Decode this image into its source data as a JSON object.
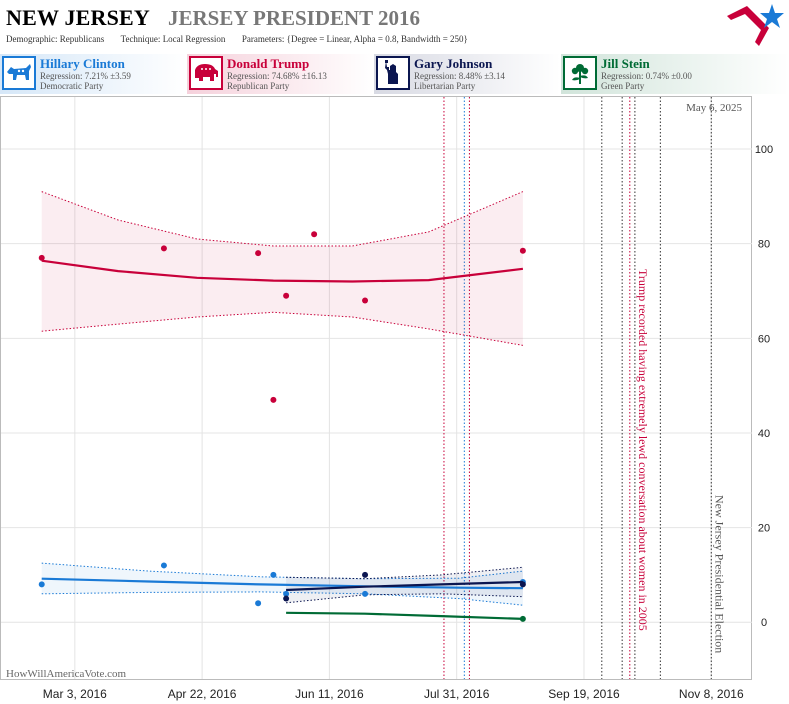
{
  "header": {
    "state": "NEW JERSEY",
    "race": "JERSEY PRESIDENT 2016",
    "demographic_label": "Demographic:",
    "demographic": "Republicans",
    "technique_label": "Technique:",
    "technique": "Local Regression",
    "parameters_label": "Parameters:",
    "parameters": "{Degree = Linear, Alpha = 0.8, Bandwidth = 250}"
  },
  "candidates": [
    {
      "name": "Hillary Clinton",
      "regression": "Regression: 7.21% ±3.59",
      "party": "Democratic Party",
      "color": "#1a7ad6",
      "icon": "donkey-icon"
    },
    {
      "name": "Donald Trump",
      "regression": "Regression: 74.68% ±16.13",
      "party": "Republican Party",
      "color": "#c8003a",
      "icon": "elephant-icon"
    },
    {
      "name": "Gary Johnson",
      "regression": "Regression: 8.48% ±3.14",
      "party": "Libertarian Party",
      "color": "#0b1650",
      "icon": "statue-of-liberty-icon"
    },
    {
      "name": "Jill Stein",
      "regression": "Regression: 0.74% ±0.00",
      "party": "Green Party",
      "color": "#006b35",
      "icon": "flower-icon"
    }
  ],
  "footer": {
    "watermark": "HowWillAmericaVote.com"
  },
  "chart_data": {
    "type": "scatter",
    "date_label": "May 6, 2025",
    "x_ticks": [
      "2016-03-03",
      "2016-04-22",
      "2016-06-11",
      "2016-07-31",
      "2016-09-19",
      "2016-11-08"
    ],
    "x_tick_labels": [
      "Mar 3, 2016",
      "Apr 22, 2016",
      "Jun 11, 2016",
      "Jul 31, 2016",
      "Sep 19, 2016",
      "Nov 8, 2016"
    ],
    "x_range": [
      "2016-02-03",
      "2016-11-24"
    ],
    "ylim": [
      -12,
      111
    ],
    "y_ticks": [
      0,
      20,
      40,
      60,
      80,
      100
    ],
    "grid": true,
    "series": [
      {
        "name": "Donald Trump",
        "color": "#c8003a",
        "points": [
          [
            "2016-02-19",
            77
          ],
          [
            "2016-04-07",
            79
          ],
          [
            "2016-05-14",
            78
          ],
          [
            "2016-05-20",
            47
          ],
          [
            "2016-05-25",
            69
          ],
          [
            "2016-06-05",
            82
          ],
          [
            "2016-06-25",
            68
          ],
          [
            "2016-08-26",
            78.5
          ]
        ],
        "trend": [
          [
            "2016-02-19",
            76.4
          ],
          [
            "2016-03-20",
            74.2
          ],
          [
            "2016-04-20",
            72.8
          ],
          [
            "2016-05-20",
            72.2
          ],
          [
            "2016-06-20",
            72.0
          ],
          [
            "2016-07-20",
            72.3
          ],
          [
            "2016-08-26",
            74.7
          ]
        ],
        "band_upper": [
          [
            "2016-02-19",
            91
          ],
          [
            "2016-03-20",
            85
          ],
          [
            "2016-04-20",
            81
          ],
          [
            "2016-05-20",
            79.5
          ],
          [
            "2016-06-20",
            79.5
          ],
          [
            "2016-07-20",
            82.5
          ],
          [
            "2016-08-26",
            91
          ]
        ],
        "band_lower": [
          [
            "2016-02-19",
            61.5
          ],
          [
            "2016-03-20",
            63
          ],
          [
            "2016-04-20",
            64.5
          ],
          [
            "2016-05-20",
            65.5
          ],
          [
            "2016-06-20",
            64.5
          ],
          [
            "2016-07-20",
            62
          ],
          [
            "2016-08-26",
            58.5
          ]
        ]
      },
      {
        "name": "Hillary Clinton",
        "color": "#1a7ad6",
        "points": [
          [
            "2016-02-19",
            8
          ],
          [
            "2016-04-07",
            12
          ],
          [
            "2016-05-14",
            4
          ],
          [
            "2016-05-20",
            10
          ],
          [
            "2016-05-25",
            6
          ],
          [
            "2016-06-25",
            6
          ],
          [
            "2016-08-26",
            8.5
          ]
        ],
        "trend": [
          [
            "2016-02-19",
            9.2
          ],
          [
            "2016-04-01",
            8.6
          ],
          [
            "2016-05-15",
            8.0
          ],
          [
            "2016-06-25",
            7.6
          ],
          [
            "2016-08-01",
            7.3
          ],
          [
            "2016-08-26",
            7.2
          ]
        ],
        "band_upper": [
          [
            "2016-02-19",
            12.5
          ],
          [
            "2016-04-01",
            10.8
          ],
          [
            "2016-05-15",
            9.6
          ],
          [
            "2016-06-25",
            9.2
          ],
          [
            "2016-08-01",
            9.3
          ],
          [
            "2016-08-26",
            10.8
          ]
        ],
        "band_lower": [
          [
            "2016-02-19",
            6
          ],
          [
            "2016-04-01",
            6.3
          ],
          [
            "2016-05-15",
            6.4
          ],
          [
            "2016-06-25",
            6
          ],
          [
            "2016-08-01",
            5
          ],
          [
            "2016-08-26",
            3.6
          ]
        ]
      },
      {
        "name": "Gary Johnson",
        "color": "#0b1650",
        "points": [
          [
            "2016-05-25",
            5
          ],
          [
            "2016-06-25",
            10
          ],
          [
            "2016-08-26",
            8
          ]
        ],
        "trend": [
          [
            "2016-05-25",
            6.8
          ],
          [
            "2016-06-25",
            7.5
          ],
          [
            "2016-07-25",
            8.0
          ],
          [
            "2016-08-26",
            8.5
          ]
        ],
        "band_upper": [
          [
            "2016-05-25",
            9.5
          ],
          [
            "2016-06-25",
            9.2
          ],
          [
            "2016-07-25",
            10
          ],
          [
            "2016-08-26",
            11.6
          ]
        ],
        "band_lower": [
          [
            "2016-05-25",
            4.1
          ],
          [
            "2016-06-25",
            5.8
          ],
          [
            "2016-07-25",
            6
          ],
          [
            "2016-08-26",
            5.4
          ]
        ]
      },
      {
        "name": "Jill Stein",
        "color": "#006b35",
        "points": [
          [
            "2016-08-26",
            0.7
          ]
        ],
        "trend": [
          [
            "2016-05-25",
            2.0
          ],
          [
            "2016-06-25",
            1.8
          ],
          [
            "2016-07-25",
            1.3
          ],
          [
            "2016-08-26",
            0.7
          ]
        ]
      }
    ],
    "event_lines": [
      {
        "date": "2016-07-26",
        "color": "#c8003a",
        "style": "dotted"
      },
      {
        "date": "2016-08-03",
        "color": "#1a7ad6",
        "style": "dotted"
      },
      {
        "date": "2016-08-05",
        "color": "#c8003a",
        "style": "dotted"
      },
      {
        "date": "2016-09-26",
        "color": "#333333",
        "style": "dotted"
      },
      {
        "date": "2016-10-04",
        "color": "#333333",
        "style": "dotted"
      },
      {
        "date": "2016-10-07",
        "color": "#c8003a",
        "style": "dotted"
      },
      {
        "date": "2016-10-09",
        "color": "#333333",
        "style": "dotted"
      },
      {
        "date": "2016-10-19",
        "color": "#333333",
        "style": "dotted"
      },
      {
        "date": "2016-11-08",
        "color": "#333333",
        "style": "dotted"
      }
    ],
    "annotations": [
      {
        "date": "2016-10-09",
        "text": "Trump recorded having extremely lewd conversation about women in 2005",
        "color": "#c8003a"
      },
      {
        "date": "2016-11-08",
        "text": "New Jersey Presidential Election",
        "color": "#555555"
      }
    ]
  }
}
